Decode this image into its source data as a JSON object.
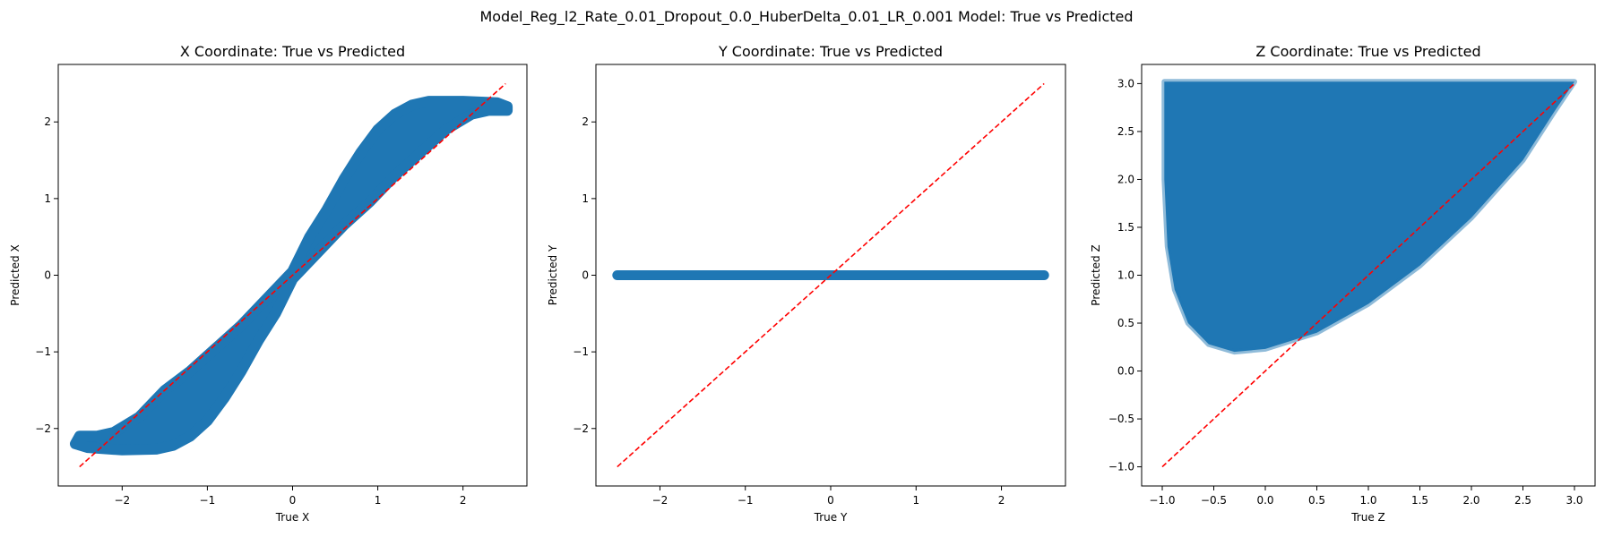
{
  "suptitle": "Model_Reg_l2_Rate_0.01_Dropout_0.0_HuberDelta_0.01_LR_0.001 Model: True vs Predicted",
  "colors": {
    "scatter": "#1f77b4",
    "reference": "#ff0000",
    "axes": "#000000"
  },
  "chart_data": [
    {
      "type": "scatter",
      "title": "X Coordinate: True vs Predicted",
      "xlabel": "True X",
      "ylabel": "Predicted X",
      "xlim": [
        -2.75,
        2.75
      ],
      "ylim": [
        -2.75,
        2.75
      ],
      "xticks": [
        -2,
        -1,
        0,
        1,
        2
      ],
      "yticks": [
        -2,
        -1,
        0,
        1,
        2
      ],
      "xtick_labels": [
        "−2",
        "−1",
        "0",
        "1",
        "2"
      ],
      "ytick_labels": [
        "−2",
        "−1",
        "0",
        "1",
        "2"
      ],
      "grid": false,
      "band": {
        "upper": [
          [
            -2.5,
            -2.1
          ],
          [
            -2.3,
            -2.1
          ],
          [
            -2.1,
            -2.05
          ],
          [
            -1.8,
            -1.85
          ],
          [
            -1.5,
            -1.5
          ],
          [
            -1.2,
            -1.25
          ],
          [
            -0.9,
            -0.95
          ],
          [
            -0.6,
            -0.65
          ],
          [
            -0.3,
            -0.3
          ],
          [
            0.0,
            0.05
          ],
          [
            0.2,
            0.5
          ],
          [
            0.4,
            0.85
          ],
          [
            0.6,
            1.25
          ],
          [
            0.8,
            1.6
          ],
          [
            1.0,
            1.9
          ],
          [
            1.2,
            2.1
          ],
          [
            1.4,
            2.22
          ],
          [
            1.6,
            2.27
          ],
          [
            2.0,
            2.27
          ],
          [
            2.4,
            2.25
          ],
          [
            2.52,
            2.2
          ]
        ],
        "lower": [
          [
            2.52,
            2.15
          ],
          [
            2.3,
            2.15
          ],
          [
            2.1,
            2.1
          ],
          [
            1.8,
            1.9
          ],
          [
            1.5,
            1.6
          ],
          [
            1.2,
            1.3
          ],
          [
            0.9,
            0.95
          ],
          [
            0.6,
            0.65
          ],
          [
            0.3,
            0.3
          ],
          [
            0.0,
            -0.05
          ],
          [
            -0.2,
            -0.5
          ],
          [
            -0.4,
            -0.85
          ],
          [
            -0.6,
            -1.25
          ],
          [
            -0.8,
            -1.6
          ],
          [
            -1.0,
            -1.9
          ],
          [
            -1.2,
            -2.1
          ],
          [
            -1.4,
            -2.22
          ],
          [
            -1.6,
            -2.27
          ],
          [
            -2.0,
            -2.28
          ],
          [
            -2.4,
            -2.25
          ],
          [
            -2.55,
            -2.2
          ]
        ]
      },
      "reference_line": {
        "x": [
          -2.5,
          2.5
        ],
        "y": [
          -2.5,
          2.5
        ]
      }
    },
    {
      "type": "scatter",
      "title": "Y Coordinate: True vs Predicted",
      "xlabel": "True Y",
      "ylabel": "Predicted Y",
      "xlim": [
        -2.75,
        2.75
      ],
      "ylim": [
        -2.75,
        2.75
      ],
      "xticks": [
        -2,
        -1,
        0,
        1,
        2
      ],
      "yticks": [
        -2,
        -1,
        0,
        1,
        2
      ],
      "xtick_labels": [
        "−2",
        "−1",
        "0",
        "1",
        "2"
      ],
      "ytick_labels": [
        "−2",
        "−1",
        "0",
        "1",
        "2"
      ],
      "grid": false,
      "points_line": {
        "x": [
          -2.5,
          2.5
        ],
        "y": [
          0,
          0
        ]
      },
      "reference_line": {
        "x": [
          -2.5,
          2.5
        ],
        "y": [
          -2.5,
          2.5
        ]
      }
    },
    {
      "type": "scatter",
      "title": "Z Coordinate: True vs Predicted",
      "xlabel": "True Z",
      "ylabel": "Predicted Z",
      "xlim": [
        -1.2,
        3.2
      ],
      "ylim": [
        -1.2,
        3.2
      ],
      "xticks": [
        -1.0,
        -0.5,
        0.0,
        0.5,
        1.0,
        1.5,
        2.0,
        2.5,
        3.0
      ],
      "yticks": [
        -1.0,
        -0.5,
        0.0,
        0.5,
        1.0,
        1.5,
        2.0,
        2.5,
        3.0
      ],
      "xtick_labels": [
        "−1.0",
        "−0.5",
        "0.0",
        "0.5",
        "1.0",
        "1.5",
        "2.0",
        "2.5",
        "3.0"
      ],
      "ytick_labels": [
        "−1.0",
        "−0.5",
        "0.0",
        "0.5",
        "1.0",
        "1.5",
        "2.0",
        "2.5",
        "3.0"
      ],
      "grid": false,
      "region": [
        [
          -0.98,
          3.02
        ],
        [
          3.0,
          3.02
        ],
        [
          2.8,
          2.7
        ],
        [
          2.5,
          2.2
        ],
        [
          2.0,
          1.6
        ],
        [
          1.5,
          1.1
        ],
        [
          1.0,
          0.7
        ],
        [
          0.5,
          0.4
        ],
        [
          0.0,
          0.23
        ],
        [
          -0.3,
          0.2
        ],
        [
          -0.55,
          0.28
        ],
        [
          -0.75,
          0.5
        ],
        [
          -0.88,
          0.85
        ],
        [
          -0.95,
          1.3
        ],
        [
          -0.98,
          2.0
        ]
      ],
      "reference_line": {
        "x": [
          -1.0,
          3.0
        ],
        "y": [
          -1.0,
          3.0
        ]
      }
    }
  ]
}
